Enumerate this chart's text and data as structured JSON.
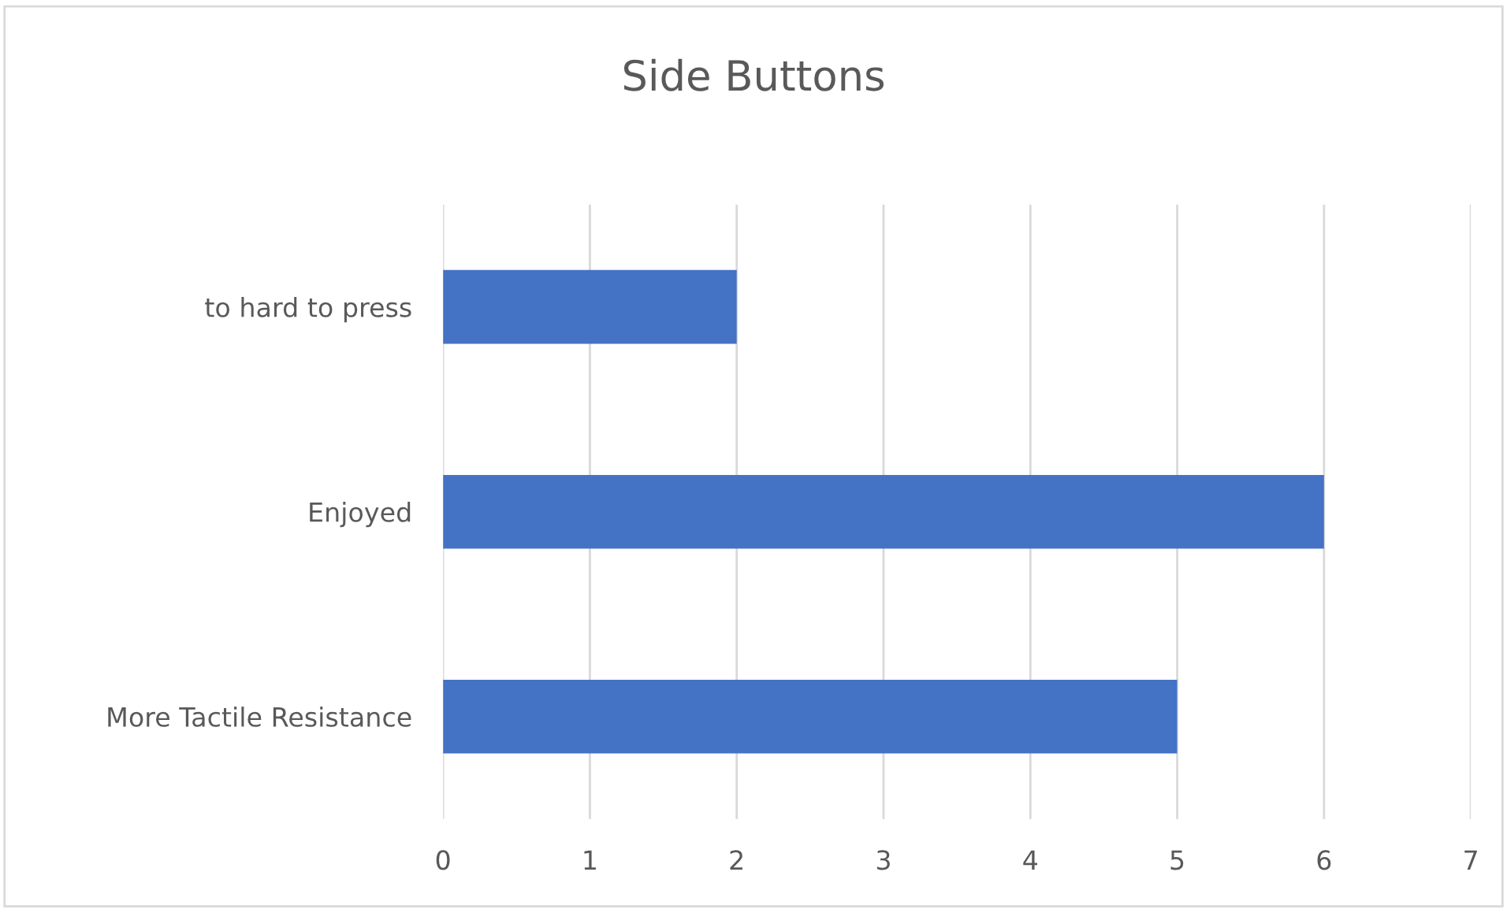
{
  "chart_data": {
    "type": "bar",
    "orientation": "horizontal",
    "title": "Side Buttons",
    "categories": [
      "to hard to press",
      "Enjoyed",
      "More Tactile Resistance"
    ],
    "values": [
      2,
      6,
      5
    ],
    "color": "#4472c4",
    "xlim": [
      0,
      7
    ],
    "xticks": [
      0,
      1,
      2,
      3,
      4,
      5,
      6,
      7
    ],
    "grid": "x",
    "legend": false
  }
}
